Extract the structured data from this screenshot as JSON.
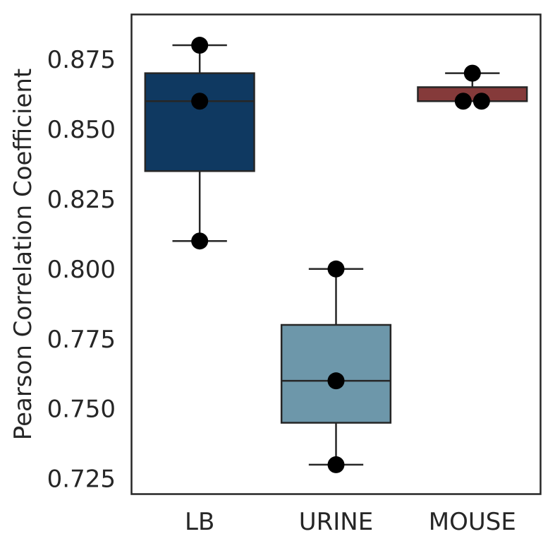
{
  "chart_data": {
    "type": "box",
    "ylabel": "Pearson Correlation Coefficient",
    "xlabel": "",
    "ylim": [
      0.7195,
      0.891
    ],
    "yticks": [
      "0.725",
      "0.750",
      "0.775",
      "0.800",
      "0.825",
      "0.850",
      "0.875"
    ],
    "grid": false,
    "categories": [
      "LB",
      "URINE",
      "MOUSE"
    ],
    "boxes": [
      {
        "name": "LB",
        "color": "#0f3961",
        "whisker_low": 0.81,
        "q1": 0.835,
        "median": 0.86,
        "q3": 0.87,
        "whisker_high": 0.88,
        "points": [
          0.88,
          0.86,
          0.81
        ]
      },
      {
        "name": "URINE",
        "color": "#6d97aa",
        "whisker_low": 0.73,
        "q1": 0.745,
        "median": 0.76,
        "q3": 0.78,
        "whisker_high": 0.8,
        "points": [
          0.8,
          0.76,
          0.73
        ]
      },
      {
        "name": "MOUSE",
        "color": "#853a3a",
        "whisker_low": 0.86,
        "q1": 0.86,
        "median": 0.86,
        "q3": 0.865,
        "whisker_high": 0.87,
        "points": [
          0.87,
          0.86,
          0.86
        ]
      }
    ],
    "point_color": "#000000",
    "edge_color": "#262626"
  }
}
